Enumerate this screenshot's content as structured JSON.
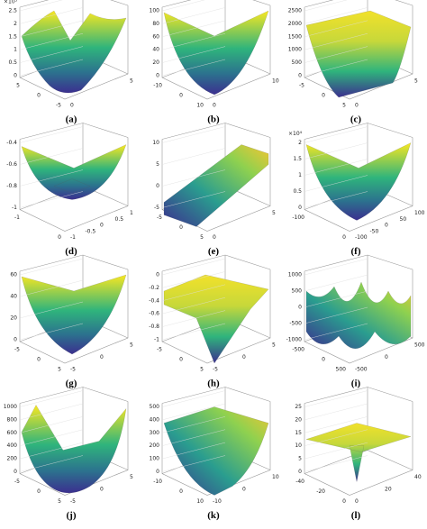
{
  "panels": [
    {
      "label": "(a)",
      "exponent": "×10⁵",
      "z_ticks": [
        "0",
        "0.5",
        "1",
        "1.5",
        "2",
        "2.5"
      ],
      "x_ticks": [
        "5",
        "0",
        "-5"
      ],
      "y_ticks": [
        "0",
        "5"
      ]
    },
    {
      "label": "(b)",
      "z_ticks": [
        "0",
        "20",
        "40",
        "60",
        "80",
        "100"
      ],
      "x_ticks": [
        "-10",
        "0",
        "10"
      ],
      "y_ticks": [
        "0",
        "10"
      ]
    },
    {
      "label": "(c)",
      "z_ticks": [
        "0",
        "500",
        "1000",
        "1500",
        "2000",
        "2500"
      ],
      "x_ticks": [
        "-5",
        "0",
        "5"
      ],
      "y_ticks": [
        "0",
        "5"
      ]
    },
    {
      "label": "(d)",
      "z_ticks": [
        "-1",
        "-0.8",
        "-0.6",
        "-0.4"
      ],
      "x_ticks": [
        "-1",
        "0"
      ],
      "y_ticks": [
        "-1",
        "-0.5",
        "0",
        "0.5",
        "1"
      ]
    },
    {
      "label": "(e)",
      "z_ticks": [
        "-5",
        "0",
        "5",
        "10"
      ],
      "x_ticks": [
        "-5",
        "0",
        "5"
      ],
      "y_ticks": [
        "0",
        "5"
      ]
    },
    {
      "label": "(f)",
      "exponent": "×10⁴",
      "z_ticks": [
        "0",
        "0.5",
        "1",
        "1.5",
        "2"
      ],
      "x_ticks": [
        "-100",
        "0"
      ],
      "y_ticks": [
        "-100",
        "-50",
        "0",
        "50",
        "100"
      ]
    },
    {
      "label": "(g)",
      "z_ticks": [
        "0",
        "20",
        "40",
        "60"
      ],
      "x_ticks": [
        "-5",
        "0",
        "5"
      ],
      "y_ticks": [
        "-5",
        "0",
        "5"
      ]
    },
    {
      "label": "(h)",
      "z_ticks": [
        "-1",
        "-0.8",
        "-0.6",
        "-0.4",
        "-0.2",
        "0"
      ],
      "x_ticks": [
        "-5",
        "0",
        "5"
      ],
      "y_ticks": [
        "-5",
        "0",
        "5"
      ]
    },
    {
      "label": "(i)",
      "z_ticks": [
        "-1000",
        "-500",
        "0",
        "500",
        "1000"
      ],
      "x_ticks": [
        "-500",
        "0",
        "500"
      ],
      "y_ticks": [
        "-500",
        "0",
        "500"
      ]
    },
    {
      "label": "(j)",
      "z_ticks": [
        "0",
        "200",
        "400",
        "600",
        "800",
        "1000"
      ],
      "x_ticks": [
        "-5",
        "0",
        "5"
      ],
      "y_ticks": [
        "-5",
        "0",
        "5"
      ]
    },
    {
      "label": "(k)",
      "z_ticks": [
        "0",
        "100",
        "200",
        "300",
        "400",
        "500"
      ],
      "x_ticks": [
        "-10",
        "0",
        "10"
      ],
      "y_ticks": [
        "-10",
        "0",
        "10"
      ]
    },
    {
      "label": "(l)",
      "z_ticks": [
        "0",
        "5",
        "10",
        "15",
        "20",
        "25"
      ],
      "x_ticks": [
        "-40",
        "-20",
        "0"
      ],
      "y_ticks": [
        "0",
        "20",
        "40"
      ]
    }
  ]
}
